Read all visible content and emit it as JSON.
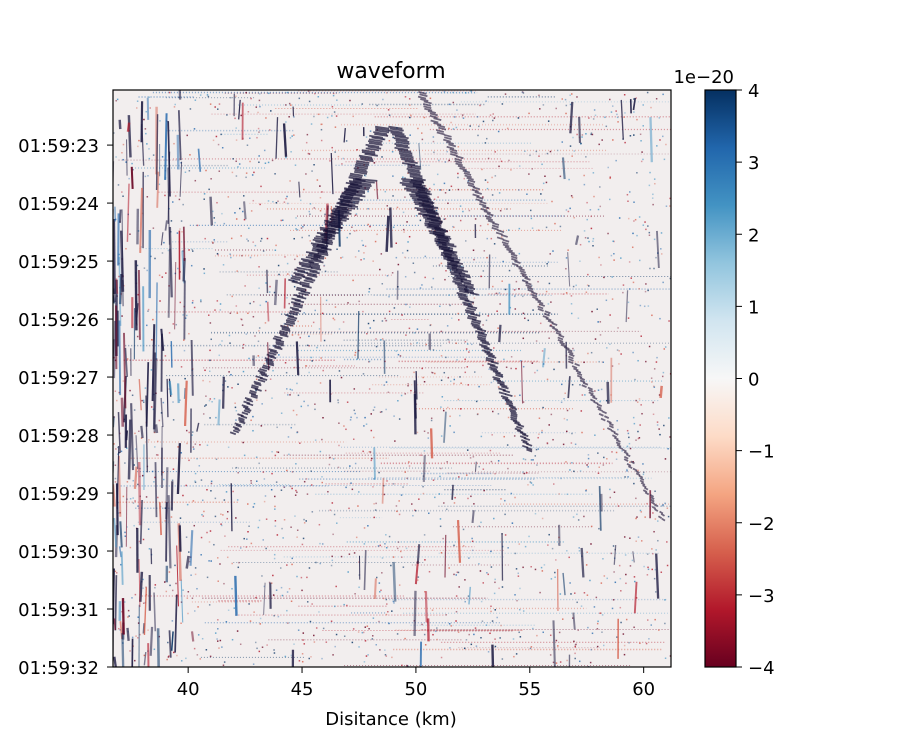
{
  "chart_data": {
    "type": "heatmap",
    "title": "waveform",
    "xlabel": "Disitance (km)",
    "ylabel": "",
    "xlim": [
      36.7,
      61.2
    ],
    "x_ticks": [
      40,
      45,
      50,
      55,
      60
    ],
    "y_ticks": [
      "01:59:23",
      "01:59:24",
      "01:59:25",
      "01:59:26",
      "01:59:27",
      "01:59:28",
      "01:59:29",
      "01:59:30",
      "01:59:31",
      "01:59:32"
    ],
    "y_tick_seconds": [
      23,
      24,
      25,
      26,
      27,
      28,
      29,
      30,
      31,
      32
    ],
    "ylim_seconds": [
      22.05,
      32.0
    ],
    "y_inverted": true,
    "colorbar": {
      "colormap": "RdBu",
      "ticks": [
        -4,
        -3,
        -2,
        -1,
        0,
        1,
        2,
        3,
        4
      ],
      "tick_labels": [
        "−4",
        "−3",
        "−2",
        "−1",
        "0",
        "1",
        "2",
        "3",
        "4"
      ],
      "range": [
        -4,
        4
      ],
      "offset_label": "1e−20"
    },
    "features": [
      {
        "name": "main arrival apex",
        "x": 48.8,
        "t": 22.9
      },
      {
        "name": "left arm",
        "from": [
          48.5,
          23.0
        ],
        "to": [
          42.0,
          28.0
        ]
      },
      {
        "name": "right arm",
        "from": [
          49.2,
          23.0
        ],
        "to": [
          55.0,
          28.2
        ]
      },
      {
        "name": "secondary right arm",
        "from": [
          50.5,
          22.4
        ],
        "to": [
          61.0,
          29.5
        ]
      }
    ]
  },
  "colors": {
    "dark_red": "#67001f",
    "mid_red": "#d6604d",
    "white": "#f7f7f7",
    "mid_blue": "#4393c3",
    "dark_blue": "#053061"
  }
}
